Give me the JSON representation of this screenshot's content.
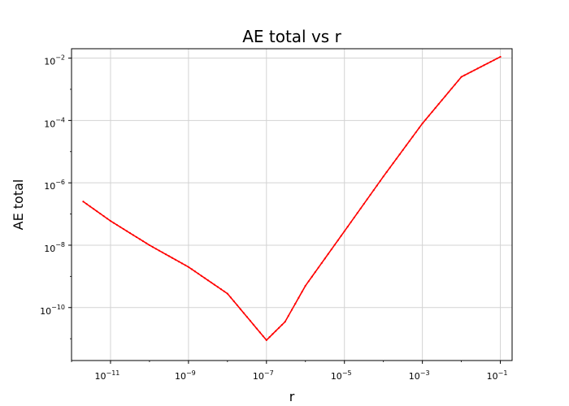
{
  "chart_data": {
    "type": "line",
    "title": "AE total vs r",
    "xlabel": "r",
    "ylabel": "AE total",
    "xscale": "log",
    "yscale": "log",
    "xlim": [
      1e-12,
      0.2
    ],
    "ylim": [
      2e-12,
      0.02
    ],
    "xticks": [
      1e-11,
      1e-09,
      1e-07,
      1e-05,
      0.001,
      0.1
    ],
    "xtick_labels": [
      {
        "base": "10",
        "exp": "−11"
      },
      {
        "base": "10",
        "exp": "−9"
      },
      {
        "base": "10",
        "exp": "−7"
      },
      {
        "base": "10",
        "exp": "−5"
      },
      {
        "base": "10",
        "exp": "−3"
      },
      {
        "base": "10",
        "exp": "−1"
      }
    ],
    "yticks": [
      1e-10,
      1e-08,
      1e-06,
      0.0001,
      0.01
    ],
    "ytick_labels": [
      {
        "base": "10",
        "exp": "−10"
      },
      {
        "base": "10",
        "exp": "−8"
      },
      {
        "base": "10",
        "exp": "−6"
      },
      {
        "base": "10",
        "exp": "−4"
      },
      {
        "base": "10",
        "exp": "−2"
      }
    ],
    "grid": true,
    "series": [
      {
        "color": "#ff0000",
        "marker": "dot",
        "x": [
          2e-12,
          1e-11,
          1e-10,
          1e-09,
          1e-08,
          1e-07,
          3e-07,
          1e-06,
          1e-05,
          0.0001,
          0.001,
          0.01,
          0.1
        ],
        "y": [
          2.5e-07,
          6e-08,
          1e-08,
          2e-09,
          2.8e-10,
          9e-12,
          3.5e-11,
          5e-10,
          2.8e-08,
          1.6e-06,
          8e-05,
          0.0025,
          0.011
        ]
      }
    ]
  }
}
